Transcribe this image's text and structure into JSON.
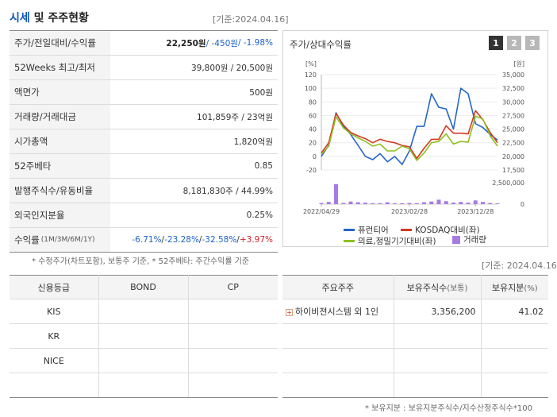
{
  "header": {
    "title_highlight": "시세",
    "title_rest": " 및 주주현황",
    "base_date": "[기준:2024.04.16]"
  },
  "quote_rows": [
    {
      "label": "주가/전일대비/수익률",
      "price": "22,250원",
      "change": " / -450원",
      "rate": " / -1.98%"
    },
    {
      "label": "52Weeks 최고/최저",
      "value": "39,800원 / 20,500원"
    },
    {
      "label": "액면가",
      "value": "500원"
    },
    {
      "label": "거래량/거래대금",
      "value": "101,859주 / 23억원"
    },
    {
      "label": "시가총액",
      "value": "1,820억원"
    },
    {
      "label": "52주베타",
      "value": "0.85"
    },
    {
      "label": "발행주식수/유동비율",
      "value": "8,181,830주 / 44.99%"
    },
    {
      "label": "외국인지분율",
      "value": "0.25%"
    },
    {
      "label": "수익률",
      "label_small": "(1M/3M/6M/1Y)",
      "returns": [
        "-6.71%",
        "-23.28%",
        "-32.58%",
        "+3.97%"
      ]
    }
  ],
  "quote_note": "* 수정주가(차트포함), 보통주 기준, * 52주베타: 주간수익률 기준",
  "chart": {
    "title": "주가/상대수익률",
    "pages": [
      "1",
      "2",
      "3"
    ],
    "active_page": "1",
    "left_unit": "[%]",
    "right_unit": "[원]",
    "series_colors": {
      "stock": "#2766c9",
      "kosdaq": "#d23a1f",
      "sector": "#8fbf21",
      "volume": "#a77be0"
    },
    "legend": {
      "stock": "퓨런티어",
      "kosdaq": "KOSDAQ대비(좌)",
      "sector": "의료,정밀기기대비(좌)",
      "volume": "거래량"
    }
  },
  "chart_data": {
    "type": "line",
    "title": "",
    "x_tick_labels": [
      "2022/04/29",
      "2023/02/28",
      "2023/12/28"
    ],
    "y_left_ticks": [
      120,
      100,
      80,
      60,
      40,
      20,
      0,
      -20
    ],
    "y_right_ticks": [
      "35,000",
      "32,500",
      "30,000",
      "27,500",
      "25,000",
      "22,500",
      "20,000",
      "17,500"
    ],
    "volume_ticks": [
      "2,500,000",
      "0"
    ],
    "ylim_left": [
      -20,
      120
    ],
    "ylim_right": [
      17500,
      35000
    ],
    "series": [
      {
        "name": "퓨런티어",
        "axis": "right",
        "values": [
          20000,
          22000,
          28000,
          25500,
          24000,
          22000,
          20000,
          19400,
          20500,
          19000,
          20000,
          18500,
          21000,
          25500,
          25500,
          31500,
          29000,
          28700,
          25000,
          32500,
          31500,
          26000,
          25300,
          24000,
          23000
        ]
      },
      {
        "name": "KOSDAQ대비(좌)",
        "axis": "left",
        "values": [
          5,
          20,
          63,
          46,
          35,
          30,
          26,
          20,
          25,
          22,
          20,
          16,
          14,
          -3,
          12,
          25,
          25,
          45,
          34,
          34,
          33,
          67,
          54,
          35,
          20
        ]
      },
      {
        "name": "의료,정밀기기대비(좌)",
        "axis": "left",
        "values": [
          3,
          15,
          58,
          42,
          33,
          27,
          22,
          15,
          18,
          8,
          8,
          15,
          11,
          -6,
          5,
          20,
          22,
          33,
          18,
          22,
          21,
          59,
          55,
          30,
          15
        ]
      },
      {
        "name": "거래량",
        "axis": "volume",
        "values": [
          150000,
          300000,
          2700000,
          150000,
          350000,
          250000,
          200000,
          120000,
          120000,
          250000,
          100000,
          120000,
          150000,
          120000,
          250000,
          350000,
          600000,
          400000,
          200000,
          300000,
          200000,
          500000,
          300000,
          150000,
          100000
        ]
      }
    ]
  },
  "bottom": {
    "base_date": "[기준: 2024.04.16]",
    "credit_headers": [
      "신용등급",
      "BOND",
      "CP"
    ],
    "credit_rows": [
      {
        "agency": "KIS",
        "bond": "",
        "cp": ""
      },
      {
        "agency": "KR",
        "bond": "",
        "cp": ""
      },
      {
        "agency": "NICE",
        "bond": "",
        "cp": ""
      },
      {
        "agency": "",
        "bond": "",
        "cp": ""
      }
    ],
    "holder_headers": [
      "주요주주",
      "보유주식수",
      "(보통)",
      "보유지분",
      "(%)"
    ],
    "holder_rows": [
      {
        "name": "하이비젼시스템 외 1인",
        "shares": "3,356,200",
        "pct": "41.02"
      },
      {
        "name": "",
        "shares": "",
        "pct": ""
      },
      {
        "name": "",
        "shares": "",
        "pct": ""
      },
      {
        "name": "",
        "shares": "",
        "pct": ""
      }
    ],
    "holder_note": "* 보유지분 : 보유지분주식수/지수산정주식수*100"
  }
}
